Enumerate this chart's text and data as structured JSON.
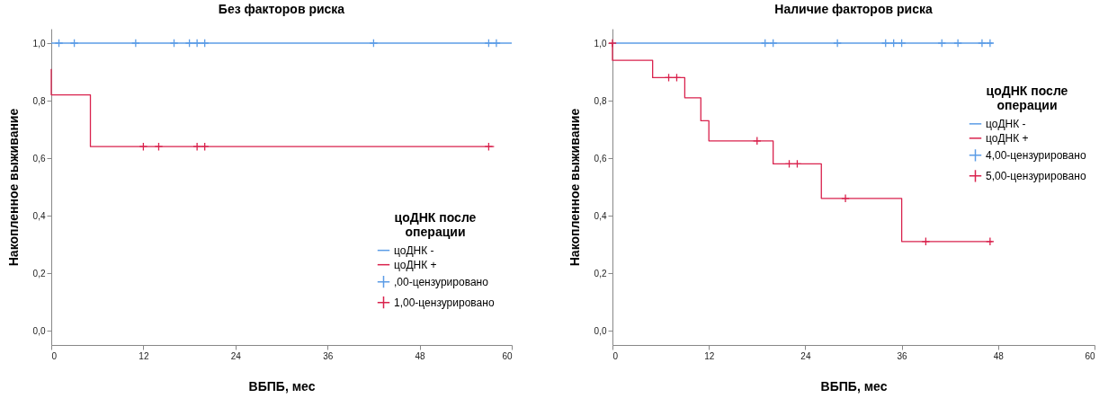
{
  "chart_data": [
    {
      "type": "step",
      "title": "Без факторов риска",
      "xlabel": "ВБПБ, мес",
      "ylabel": "Накопленное выживание",
      "legend_title": "цоДНК после операции",
      "legend": "bottom right",
      "grid": false,
      "xlim": [
        0,
        60
      ],
      "xticks": [
        0,
        12,
        24,
        36,
        48,
        60
      ],
      "ylim": [
        -0.05,
        1.05
      ],
      "yticks": [
        {
          "value": 0,
          "label": "0,0"
        },
        {
          "value": 0.2,
          "label": "0,2"
        },
        {
          "value": 0.4,
          "label": "0,4"
        },
        {
          "value": 0.6,
          "label": "0,6"
        },
        {
          "value": 0.8,
          "label": "0,8"
        },
        {
          "value": 1,
          "label": "1,0"
        }
      ],
      "series": [
        {
          "name": "цоДНК -",
          "color": "#5b9ce6",
          "marker": "none",
          "x": [
            0,
            60
          ],
          "values": [
            1,
            1
          ]
        },
        {
          "name": "цоДНК +",
          "color": "#d9224d",
          "marker": "none",
          "x": [
            0,
            0,
            5.1,
            57.7
          ],
          "values": [
            0.91,
            0.82,
            0.64,
            0.64
          ]
        },
        {
          "name": ",00-цензурировано",
          "color": "#5b9ce6",
          "type": "scatter",
          "marker": "cross",
          "x": [
            1,
            3,
            11,
            16,
            18,
            19,
            20,
            42,
            57,
            58
          ],
          "values": [
            1,
            1,
            1,
            1,
            1,
            1,
            1,
            1,
            1,
            1
          ]
        },
        {
          "name": "1,00-цензурировано",
          "color": "#d9224d",
          "type": "scatter",
          "marker": "cross",
          "x": [
            12,
            14,
            19,
            20,
            57
          ],
          "values": [
            0.64,
            0.64,
            0.64,
            0.64,
            0.64
          ]
        }
      ]
    },
    {
      "type": "step",
      "title": "Наличие факторов риска",
      "xlabel": "ВБПБ, мес",
      "ylabel": "Накопленное выживание",
      "legend_title": "цоДНК после операции",
      "legend": "right",
      "grid": false,
      "xlim": [
        0,
        60
      ],
      "xticks": [
        0,
        12,
        24,
        36,
        48,
        60
      ],
      "ylim": [
        -0.05,
        1.05
      ],
      "yticks": [
        {
          "value": 0,
          "label": "0,0"
        },
        {
          "value": 0.2,
          "label": "0,2"
        },
        {
          "value": 0.4,
          "label": "0,4"
        },
        {
          "value": 0.6,
          "label": "0,6"
        },
        {
          "value": 0.8,
          "label": "0,8"
        },
        {
          "value": 1,
          "label": "1,0"
        }
      ],
      "series": [
        {
          "name": "цоДНК -",
          "color": "#5b9ce6",
          "marker": "none",
          "x": [
            0,
            47.3
          ],
          "values": [
            1,
            1
          ]
        },
        {
          "name": "цоДНК +",
          "color": "#d9224d",
          "marker": "none",
          "x": [
            0,
            0,
            5,
            9,
            11,
            12,
            20,
            26,
            36,
            47.3
          ],
          "values": [
            1,
            0.94,
            0.88,
            0.81,
            0.73,
            0.66,
            0.58,
            0.46,
            0.31,
            0.31
          ]
        },
        {
          "name": "4,00-цензурировано",
          "color": "#5b9ce6",
          "type": "scatter",
          "marker": "cross",
          "x": [
            19,
            20,
            28,
            34,
            35,
            36,
            41,
            43,
            46,
            47
          ],
          "values": [
            1,
            1,
            1,
            1,
            1,
            1,
            1,
            1,
            1,
            1
          ]
        },
        {
          "name": "5,00-цензурировано",
          "color": "#d9224d",
          "type": "scatter",
          "marker": "cross",
          "x": [
            0,
            7,
            8,
            18,
            22,
            23,
            29,
            39,
            47
          ],
          "values": [
            1,
            0.88,
            0.88,
            0.66,
            0.58,
            0.58,
            0.46,
            0.31,
            0.31
          ]
        }
      ]
    }
  ]
}
